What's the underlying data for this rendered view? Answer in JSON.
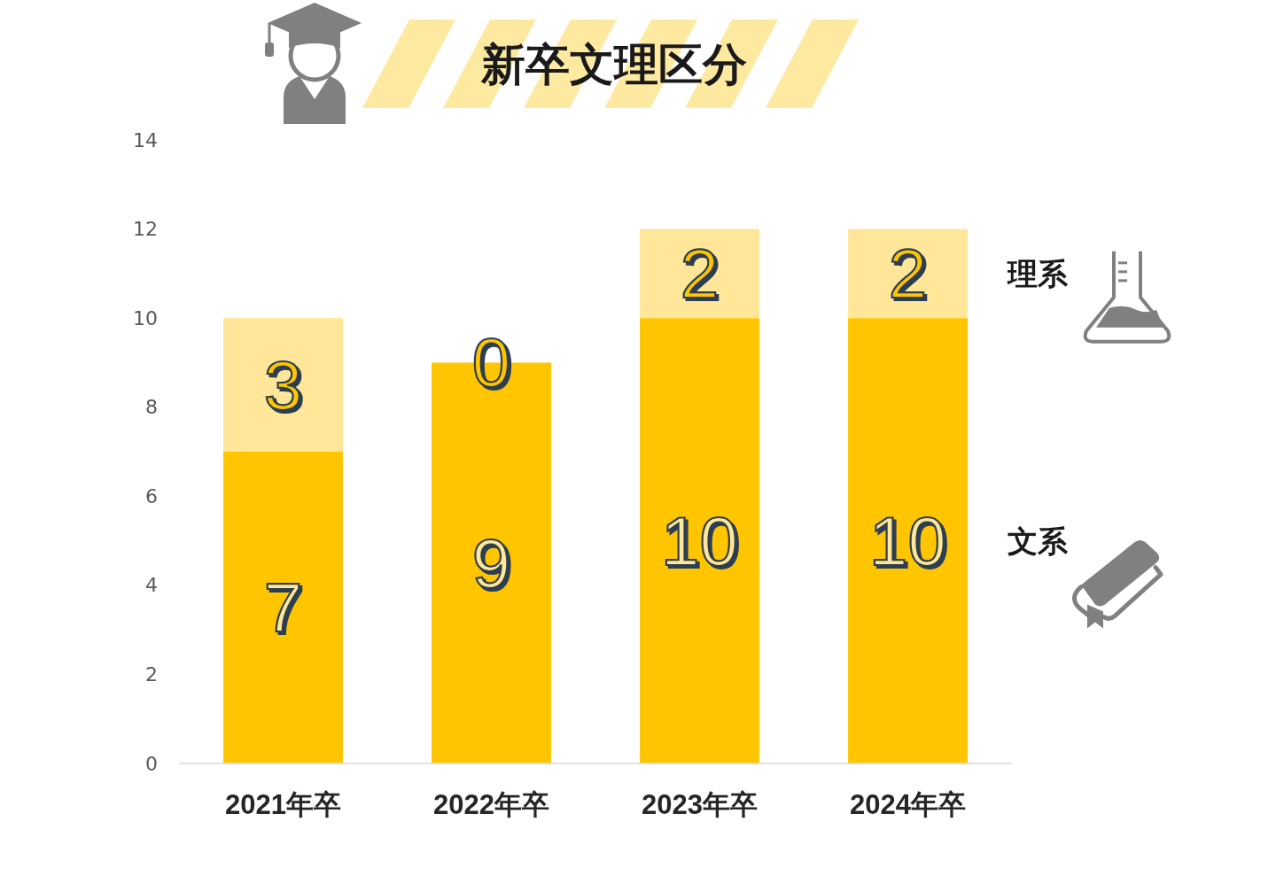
{
  "chart_data": {
    "type": "bar",
    "title": "新卒文理区分",
    "categories": [
      "2021年卒",
      "2022年卒",
      "2023年卒",
      "2024年卒"
    ],
    "stacked": true,
    "series": [
      {
        "name": "文系",
        "color": "#ffc600",
        "values": [
          7,
          9,
          10,
          10
        ]
      },
      {
        "name": "理系",
        "color": "#ffe699",
        "values": [
          3,
          0,
          2,
          2
        ]
      }
    ],
    "ylim": [
      0,
      14
    ],
    "yticks": [
      0,
      2,
      4,
      6,
      8,
      10,
      12,
      14
    ],
    "data_labels": true,
    "legend": "right"
  }
}
